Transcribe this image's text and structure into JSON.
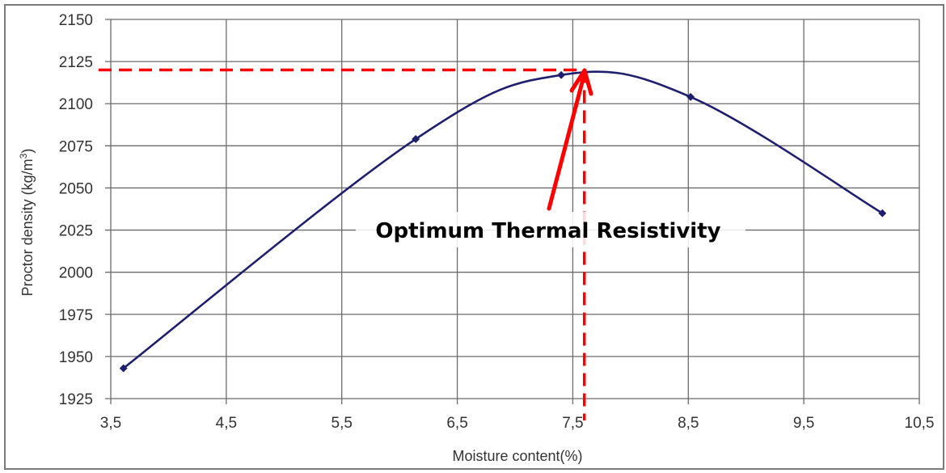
{
  "chart_data": {
    "type": "line",
    "title": "",
    "xlabel": "Moisture content(%)",
    "ylabel": "Proctor density (kg/m",
    "ylabel_superscript": "3",
    "ylabel_suffix": ")",
    "xlim": [
      3.5,
      10.5
    ],
    "ylim": [
      1925,
      2150
    ],
    "x_ticks": [
      3.5,
      4.5,
      5.5,
      6.5,
      7.5,
      8.5,
      9.5,
      10.5
    ],
    "x_tick_labels": [
      "3,5",
      "4,5",
      "5,5",
      "6,5",
      "7,5",
      "8,5",
      "9,5",
      "10,5"
    ],
    "y_ticks": [
      1925,
      1950,
      1975,
      2000,
      2025,
      2050,
      2075,
      2100,
      2125,
      2150
    ],
    "y_tick_labels": [
      "1925",
      "1950",
      "1975",
      "2000",
      "2025",
      "2050",
      "2075",
      "2100",
      "2125",
      "2150"
    ],
    "grid": true,
    "legend": null,
    "series": [
      {
        "name": "Proctor density",
        "color": "#1f1f6e",
        "smoothed": true,
        "x": [
          3.61,
          6.14,
          7.4,
          8.52,
          10.18
        ],
        "y": [
          1943,
          2079,
          2117,
          2104,
          2035
        ]
      }
    ],
    "optimum": {
      "x": 7.6,
      "y": 2120
    },
    "annotations": [
      {
        "text": "Optimum Thermal Resistivity",
        "arrow_to": {
          "x": 7.6,
          "y": 2120
        },
        "color": "#ff0000"
      }
    ]
  },
  "colors": {
    "curve": "#1f1f6e",
    "grid": "#6b6b6b",
    "annotation_red": "#ff0000",
    "frame": "#7a7a7a"
  }
}
